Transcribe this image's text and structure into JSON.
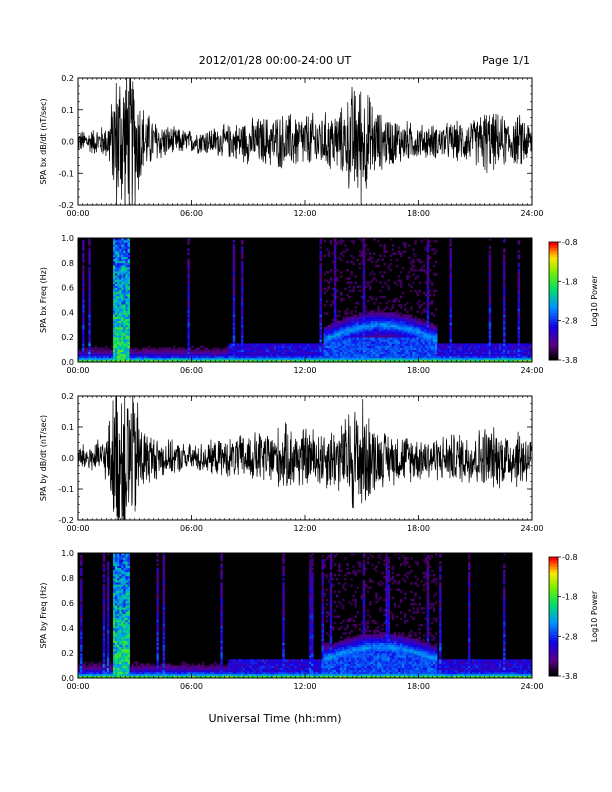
{
  "header": {
    "date_range": "2012/01/28  00:00-24:00 UT",
    "page": "Page 1/1"
  },
  "footer": {
    "xlabel": "Universal Time (hh:mm)"
  },
  "chart_data": [
    {
      "type": "line",
      "ylabel": "SPA bx dB/dt (nT/sec)",
      "x_ticks": [
        "00:00",
        "06:00",
        "12:00",
        "18:00",
        "24:00"
      ],
      "xlim_hours": [
        0,
        24
      ],
      "ylim": [
        -0.2,
        0.2
      ],
      "y_ticks": [
        "-0.2",
        "-0.1",
        "0.0",
        "0.1",
        "0.2"
      ],
      "series": [
        {
          "color": "#000000"
        }
      ],
      "envelope": {
        "hours": [
          0,
          0.5,
          1,
          1.5,
          1.8,
          2,
          2.3,
          2.6,
          3,
          3.5,
          4,
          5,
          6,
          7,
          8,
          9,
          10,
          11,
          12,
          13,
          14,
          14.5,
          15,
          15.5,
          16,
          17,
          18,
          19,
          20,
          21,
          21.5,
          22,
          23,
          23.5,
          24
        ],
        "amplitude": [
          0.04,
          0.04,
          0.05,
          0.06,
          0.15,
          0.25,
          0.3,
          0.3,
          0.25,
          0.12,
          0.08,
          0.05,
          0.04,
          0.05,
          0.06,
          0.08,
          0.09,
          0.1,
          0.1,
          0.1,
          0.12,
          0.2,
          0.22,
          0.15,
          0.1,
          0.08,
          0.06,
          0.06,
          0.07,
          0.08,
          0.12,
          0.1,
          0.08,
          0.1,
          0.06
        ]
      }
    },
    {
      "type": "heatmap",
      "ylabel": "SPA bx Freq (Hz)",
      "x_ticks": [
        "00:00",
        "06:00",
        "12:00",
        "18:00",
        "24:00"
      ],
      "xlim_hours": [
        0,
        24
      ],
      "ylim": [
        0,
        1.0
      ],
      "y_ticks": [
        "0.0",
        "0.2",
        "0.4",
        "0.6",
        "0.8",
        "1.0"
      ],
      "colorbar": {
        "label": "Log10 Power",
        "range": [
          -3.8,
          -0.8
        ],
        "ticks": [
          "-0.8",
          "-1.8",
          "-2.8",
          "-3.8"
        ]
      },
      "features": {
        "background_power": -3.8,
        "lowfreq_band_hz": 0.05,
        "event_hours": [
          2.0,
          2.5
        ],
        "midfreq_band_hours": [
          13,
          19
        ],
        "midfreq_band_hz": 0.3
      }
    },
    {
      "type": "line",
      "ylabel": "SPA by dB/dt (nT/sec)",
      "x_ticks": [
        "00:00",
        "06:00",
        "12:00",
        "18:00",
        "24:00"
      ],
      "xlim_hours": [
        0,
        24
      ],
      "ylim": [
        -0.2,
        0.2
      ],
      "y_ticks": [
        "-0.2",
        "-0.1",
        "0.0",
        "0.1",
        "0.2"
      ],
      "series": [
        {
          "color": "#000000"
        }
      ],
      "envelope": {
        "hours": [
          0,
          0.5,
          1,
          1.5,
          1.8,
          2,
          2.3,
          2.6,
          3,
          3.5,
          4,
          5,
          6,
          7,
          8,
          9,
          10,
          11,
          12,
          13,
          14,
          14.5,
          15,
          15.5,
          16,
          17,
          18,
          19,
          20,
          21,
          21.5,
          22,
          23,
          23.5,
          24
        ],
        "amplitude": [
          0.05,
          0.05,
          0.06,
          0.08,
          0.2,
          0.3,
          0.32,
          0.3,
          0.25,
          0.12,
          0.08,
          0.06,
          0.05,
          0.06,
          0.07,
          0.09,
          0.1,
          0.12,
          0.11,
          0.11,
          0.13,
          0.2,
          0.22,
          0.14,
          0.1,
          0.09,
          0.08,
          0.08,
          0.09,
          0.1,
          0.12,
          0.11,
          0.1,
          0.12,
          0.07
        ]
      }
    },
    {
      "type": "heatmap",
      "ylabel": "SPA by Freq (Hz)",
      "x_ticks": [
        "00:00",
        "06:00",
        "12:00",
        "18:00",
        "24:00"
      ],
      "xlim_hours": [
        0,
        24
      ],
      "ylim": [
        0,
        1.0
      ],
      "y_ticks": [
        "0.0",
        "0.2",
        "0.4",
        "0.6",
        "0.8",
        "1.0"
      ],
      "colorbar": {
        "label": "Log10 Power",
        "range": [
          -3.8,
          -0.8
        ],
        "ticks": [
          "-0.8",
          "-1.8",
          "-2.8",
          "-3.8"
        ]
      },
      "features": {
        "background_power": -3.8,
        "lowfreq_band_hz": 0.05,
        "event_hours": [
          2.0,
          2.5
        ],
        "midfreq_band_hours": [
          13,
          19
        ],
        "midfreq_band_hz": 0.25
      }
    }
  ]
}
